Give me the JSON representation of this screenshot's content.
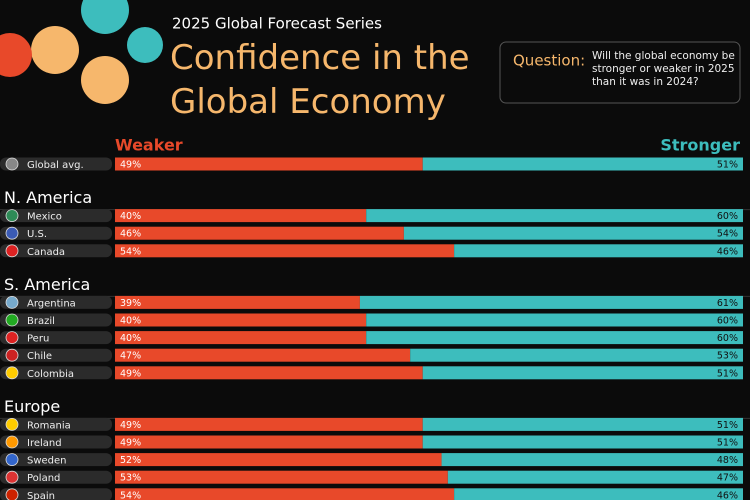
{
  "chart_data": {
    "type": "stacked_bar_100",
    "subtitle": "2025 Global Forecast Series",
    "title": "Confidence in the Global Economy",
    "question_label": "Question:",
    "question": "Will the global economy be stronger or weaker in 2025 than it was in 2024?",
    "xlim": [
      0,
      100
    ],
    "categories": [
      "Global avg.",
      "Mexico",
      "U.S.",
      "Canada",
      "Argentina",
      "Brazil",
      "Peru",
      "Chile",
      "Colombia",
      "Romania",
      "Ireland",
      "Sweden",
      "Poland",
      "Spain"
    ],
    "groups": [
      {
        "name": "N. America",
        "start": 1
      },
      {
        "name": "S. America",
        "start": 4
      },
      {
        "name": "Europe",
        "start": 9
      }
    ],
    "series": [
      {
        "name": "Weaker",
        "color": "#e8492a",
        "values": [
          49,
          40,
          46,
          54,
          39,
          40,
          40,
          47,
          49,
          49,
          49,
          52,
          53,
          54
        ],
        "value_labels": [
          "49%",
          "40%",
          "46%",
          "54%",
          "39%",
          "40%",
          "40%",
          "47%",
          "49%",
          "49%",
          "49%",
          "52%",
          "53%",
          "54%"
        ]
      },
      {
        "name": "Stronger",
        "color": "#3dbdbd",
        "values": [
          51,
          60,
          54,
          46,
          61,
          60,
          60,
          53,
          51,
          51,
          51,
          48,
          47,
          46
        ],
        "value_labels": [
          "51%",
          "60%",
          "54%",
          "46%",
          "61%",
          "60%",
          "60%",
          "53%",
          "51%",
          "51%",
          "51%",
          "48%",
          "47%",
          "46%"
        ]
      }
    ]
  }
}
